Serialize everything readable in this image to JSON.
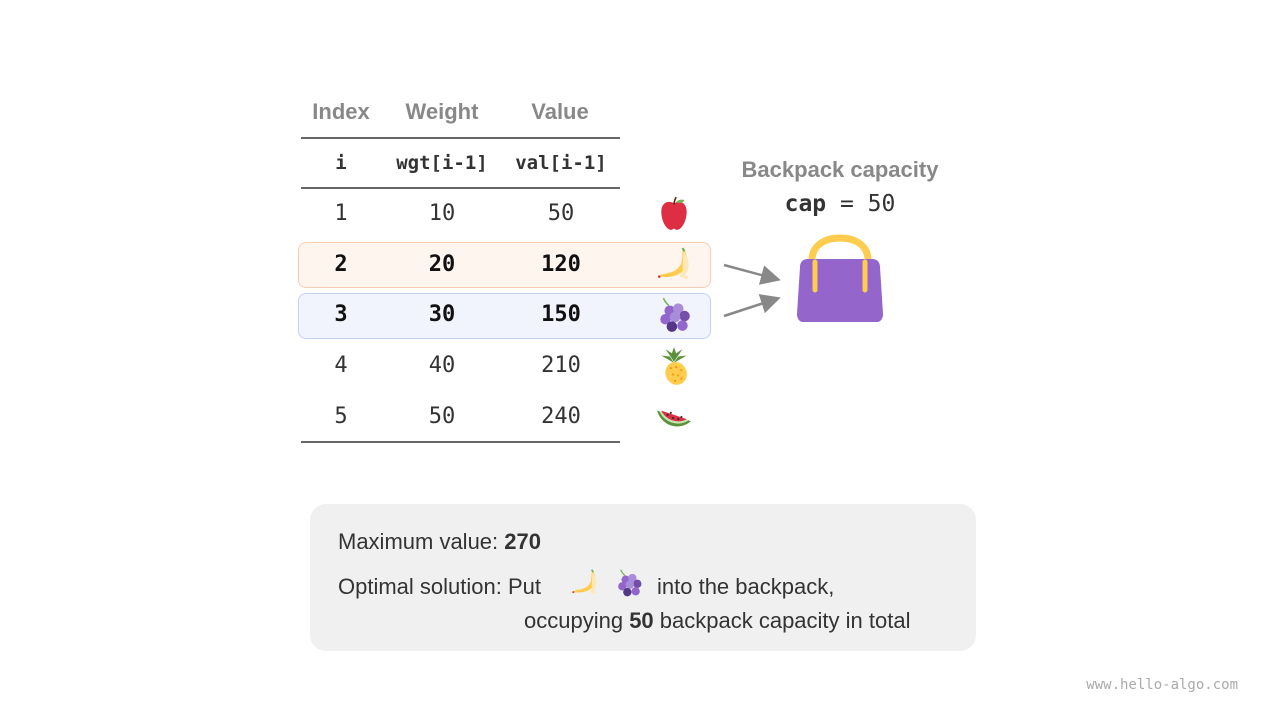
{
  "table": {
    "headers": [
      "Index",
      "Weight",
      "Value"
    ],
    "subheaders": [
      "i",
      "wgt[i-1]",
      "val[i-1]"
    ],
    "rows": [
      {
        "i": "1",
        "wgt": "10",
        "val": "50",
        "fruit": "apple-icon",
        "highlight": "none"
      },
      {
        "i": "2",
        "wgt": "20",
        "val": "120",
        "fruit": "banana-icon",
        "highlight": "orange"
      },
      {
        "i": "3",
        "wgt": "30",
        "val": "150",
        "fruit": "grapes-icon",
        "highlight": "blue"
      },
      {
        "i": "4",
        "wgt": "40",
        "val": "210",
        "fruit": "pineapple-icon",
        "highlight": "none"
      },
      {
        "i": "5",
        "wgt": "50",
        "val": "240",
        "fruit": "watermelon-icon",
        "highlight": "none"
      }
    ]
  },
  "backpack": {
    "title": "Backpack capacity",
    "cap_var": "cap",
    "cap_eq": " = 50",
    "icon": "backpack-icon",
    "color": "#9466cc"
  },
  "summary": {
    "max_label": "Maximum value: ",
    "max_value": "270",
    "solution_label": "Optimal solution: Put",
    "solution_mid": "into the backpack,",
    "occupying_pre": "occupying ",
    "occupying_value": "50",
    "occupying_post": " backpack capacity in total"
  },
  "watermark": "www.hello-algo.com",
  "colors": {
    "highlight_orange_bg": "#fef5ef",
    "highlight_orange_border": "#f9cdb0",
    "highlight_blue_bg": "#f1f4fc",
    "highlight_blue_border": "#c5d2f2",
    "summary_bg": "#f0f0f0"
  }
}
